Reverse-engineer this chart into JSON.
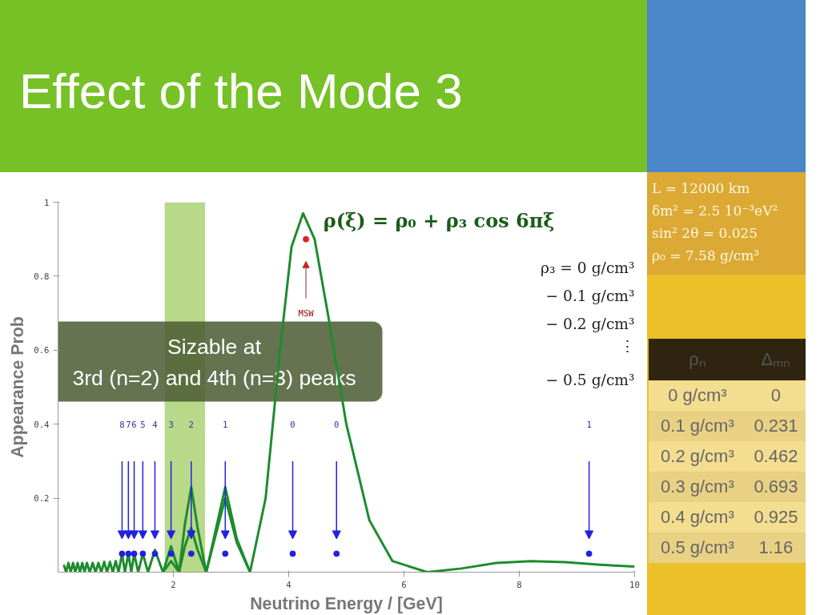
{
  "chart_data": {
    "type": "line",
    "title": "Effect of the Mode 3",
    "xlabel": "Neutrino Energy / [GeV]",
    "ylabel": "Appearance Prob",
    "xlim": [
      0,
      10
    ],
    "ylim": [
      0,
      1
    ],
    "xticks": [
      2,
      4,
      6,
      8,
      10
    ],
    "yticks": [
      0.2,
      0.4,
      0.6,
      0.8,
      1
    ],
    "grid": false,
    "line_style": "solid",
    "bands": [
      {
        "axis": "x",
        "from": 1.85,
        "to": 2.55,
        "color": "#b8d98a"
      }
    ],
    "series": [
      {
        "color": "#1e8c2e",
        "x": [
          0.1,
          0.14,
          0.18,
          0.22,
          0.26,
          0.3,
          0.34,
          0.38,
          0.42,
          0.46,
          0.5,
          0.55,
          0.6,
          0.65,
          0.7,
          0.75,
          0.8,
          0.85,
          0.9,
          0.95,
          1.0,
          1.05,
          1.11,
          1.16,
          1.22,
          1.27,
          1.32,
          1.39,
          1.47,
          1.56,
          1.68,
          1.82,
          1.96,
          2.1,
          2.2,
          2.31,
          2.42,
          2.57,
          2.7,
          2.9,
          3.1,
          3.33,
          3.6,
          3.85,
          4.05,
          4.25,
          4.45,
          4.7,
          5.0,
          5.4,
          5.8,
          6.4,
          7.0,
          7.6,
          8.2,
          8.8,
          9.4,
          10
        ],
        "values": [
          0.02,
          0,
          0.025,
          0,
          0.025,
          0,
          0.025,
          0,
          0.025,
          0,
          0.025,
          0,
          0.025,
          0,
          0.025,
          0,
          0.028,
          0,
          0.028,
          0,
          0.03,
          0,
          0.05,
          0,
          0.05,
          0,
          0.05,
          0,
          0.05,
          0,
          0.06,
          0,
          0.03,
          0,
          0.07,
          0.12,
          0.06,
          0,
          0.08,
          0.2,
          0.08,
          0,
          0.2,
          0.6,
          0.88,
          0.97,
          0.9,
          0.68,
          0.4,
          0.14,
          0.03,
          0,
          0.01,
          0.025,
          0.03,
          0.027,
          0.02,
          0.015
        ]
      },
      {
        "color": "#1e8c2e",
        "x": [
          1.82,
          1.96,
          2.1,
          2.2,
          2.31,
          2.42,
          2.57,
          2.7,
          2.9,
          3.1,
          3.33
        ],
        "values": [
          0,
          0.07,
          0,
          0.13,
          0.23,
          0.12,
          0,
          0.09,
          0.23,
          0.09,
          0
        ]
      },
      {
        "type": "scatter",
        "marker": "circle",
        "color": "#2222dd",
        "x": [
          1.11,
          1.22,
          1.32,
          1.47,
          1.68,
          1.96,
          2.31,
          2.9,
          4.07,
          4.83,
          9.21
        ],
        "values": [
          0.05,
          0.05,
          0.05,
          0.05,
          0.05,
          0.05,
          0.05,
          0.05,
          0.05,
          0.05,
          0.05
        ]
      },
      {
        "type": "scatter",
        "marker": "circle",
        "color": "#dd2222",
        "x": [
          4.3
        ],
        "values": [
          0.9
        ]
      }
    ],
    "annotations": [
      "ρ(ξ) = ρ₀ + ρ₃ cos 6πξ",
      "ρ₃ = 0 g/cm³",
      "− 0.1 g/cm³",
      "− 0.2 g/cm³",
      "⋮",
      "− 0.5 g/cm³",
      "Sizable at",
      "3rd (n=2) and 4th (n=3) peaks",
      "L = 12000 km",
      "δm² = 2.5 10⁻³eV²",
      "sin² 2θ = 0.025",
      "ρ₀ = 7.58 g/cm³",
      "ρₙ",
      "Δₘₙ",
      "0 g/cm³",
      "0",
      "0.1 g/cm³",
      "0.231",
      "0.2 g/cm³",
      "0.462",
      "0.3 g/cm³",
      "0.693",
      "0.4 g/cm³",
      "0.925",
      "0.5 g/cm³",
      "1.16",
      "MSW",
      "8",
      "7",
      "6",
      "5",
      "4",
      "3",
      "2",
      "1",
      "0",
      "0",
      "1"
    ]
  }
}
